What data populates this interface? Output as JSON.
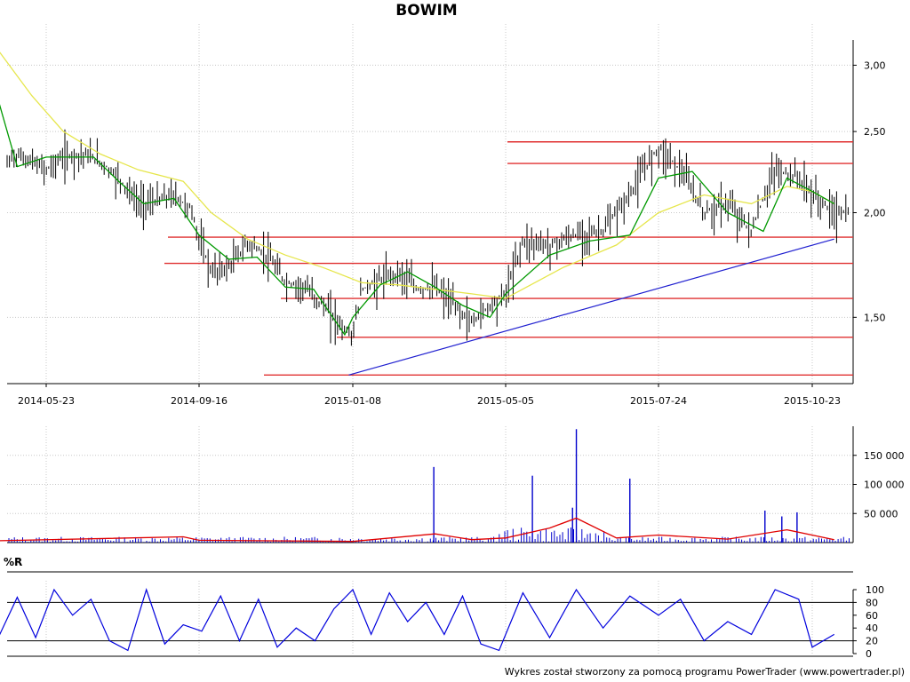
{
  "title": "BOWIM",
  "footer": "Wykres został stworzony za pomocą programu PowerTrader (www.powertrader.pl)",
  "colors": {
    "grid": "#c8c8c8",
    "price": "#000000",
    "ma_fast": "#009900",
    "ma_slow": "#e6e64c",
    "levels": "#e03030",
    "trend": "#2020d0",
    "volume": "#0000cc",
    "volume_ma": "#e00000",
    "wr": "#0000dd"
  },
  "chart_data": [
    {
      "type": "line",
      "name": "price",
      "title": "BOWIM",
      "x_ticks": [
        "2014-05-23",
        "2014-09-16",
        "2015-01-08",
        "2015-05-05",
        "2015-07-24",
        "2015-10-23"
      ],
      "y_ticks": [
        "1,50",
        "2,00",
        "2,50",
        "3,00"
      ],
      "ylim": [
        1.25,
        3.2
      ],
      "scale": "log",
      "grid": true,
      "levels": [
        2.43,
        2.29,
        1.87,
        1.74,
        1.58,
        1.42,
        1.28
      ],
      "trendline": {
        "from": [
          "2015-01-05",
          1.28
        ],
        "to": [
          "2015-11-05",
          1.86
        ]
      },
      "series": [
        {
          "name": "close",
          "x": [
            "2014-04-15",
            "2014-04-28",
            "2014-05-12",
            "2014-05-23",
            "2014-06-05",
            "2014-06-20",
            "2014-07-03",
            "2014-07-17",
            "2014-08-01",
            "2014-08-14",
            "2014-08-28",
            "2014-09-10",
            "2014-09-16",
            "2014-09-25",
            "2014-10-08",
            "2014-10-22",
            "2014-11-05",
            "2014-11-19",
            "2014-12-03",
            "2014-12-17",
            "2015-01-02",
            "2015-01-08",
            "2015-01-15",
            "2015-01-29",
            "2015-02-12",
            "2015-02-26",
            "2015-03-12",
            "2015-03-26",
            "2015-04-09",
            "2015-04-23",
            "2015-05-05",
            "2015-05-14",
            "2015-05-28",
            "2015-06-11",
            "2015-06-25",
            "2015-07-09",
            "2015-07-24",
            "2015-08-06",
            "2015-08-20",
            "2015-09-03",
            "2015-09-17",
            "2015-10-01",
            "2015-10-15",
            "2015-10-23",
            "2015-11-05"
          ],
          "y": [
            2.15,
            2.35,
            2.3,
            2.25,
            2.33,
            2.35,
            2.3,
            2.2,
            2.05,
            2.06,
            2.1,
            2.02,
            1.86,
            1.7,
            1.72,
            1.84,
            1.78,
            1.65,
            1.63,
            1.55,
            1.45,
            1.43,
            1.62,
            1.66,
            1.7,
            1.62,
            1.63,
            1.55,
            1.48,
            1.55,
            1.6,
            1.85,
            1.83,
            1.88,
            1.9,
            2.1,
            2.4,
            2.25,
            2.0,
            2.05,
            1.9,
            2.25,
            2.2,
            2.1,
            2.0
          ]
        },
        {
          "name": "ma_fast",
          "x": [
            "2014-04-15",
            "2014-05-01",
            "2014-05-23",
            "2014-06-10",
            "2014-06-28",
            "2014-07-17",
            "2014-08-05",
            "2014-08-28",
            "2014-09-16",
            "2014-10-08",
            "2014-10-29",
            "2014-11-19",
            "2014-12-10",
            "2015-01-02",
            "2015-01-08",
            "2015-01-29",
            "2015-02-19",
            "2015-03-12",
            "2015-04-02",
            "2015-04-23",
            "2015-05-05",
            "2015-05-28",
            "2015-06-18",
            "2015-07-09",
            "2015-07-24",
            "2015-08-13",
            "2015-09-03",
            "2015-09-24",
            "2015-10-08",
            "2015-10-23",
            "2015-11-05"
          ],
          "y": [
            2.78,
            2.27,
            2.33,
            2.33,
            2.33,
            2.18,
            2.05,
            2.08,
            1.88,
            1.76,
            1.77,
            1.63,
            1.62,
            1.43,
            1.5,
            1.64,
            1.7,
            1.63,
            1.55,
            1.5,
            1.6,
            1.78,
            1.85,
            1.88,
            2.2,
            2.24,
            2.0,
            1.9,
            2.2,
            2.12,
            2.05
          ]
        },
        {
          "name": "ma_slow",
          "x": [
            "2014-04-15",
            "2014-05-12",
            "2014-06-05",
            "2014-07-03",
            "2014-08-01",
            "2014-09-04",
            "2014-09-25",
            "2014-10-22",
            "2014-11-19",
            "2014-12-17",
            "2015-01-15",
            "2015-02-12",
            "2015-03-12",
            "2015-04-09",
            "2015-05-05",
            "2015-06-04",
            "2015-07-02",
            "2015-07-24",
            "2015-08-20",
            "2015-09-17",
            "2015-10-08",
            "2015-10-23",
            "2015-11-05"
          ],
          "y": [
            3.15,
            2.76,
            2.5,
            2.35,
            2.25,
            2.18,
            2.0,
            1.86,
            1.78,
            1.72,
            1.65,
            1.64,
            1.62,
            1.6,
            1.58,
            1.72,
            1.83,
            2.0,
            2.1,
            2.05,
            2.15,
            2.12,
            2.05
          ]
        }
      ]
    },
    {
      "type": "bar",
      "name": "volume",
      "y_ticks": [
        "50 000",
        "100 000",
        "150 000"
      ],
      "ylim": [
        0,
        200000
      ],
      "grid": true,
      "spikes": {
        "x": [
          "2015-03-11",
          "2015-05-19",
          "2015-06-09",
          "2015-06-11",
          "2015-07-09",
          "2015-09-25",
          "2015-10-05",
          "2015-10-14"
        ],
        "y": [
          130000,
          115000,
          60000,
          195000,
          110000,
          55000,
          45000,
          52000
        ]
      },
      "volume_ma": {
        "x": [
          "2014-04-15",
          "2014-09-04",
          "2014-09-16",
          "2015-01-08",
          "2015-03-12",
          "2015-04-09",
          "2015-05-05",
          "2015-05-28",
          "2015-06-11",
          "2015-07-02",
          "2015-07-24",
          "2015-09-03",
          "2015-10-08",
          "2015-11-05"
        ],
        "y": [
          3000,
          10000,
          4000,
          2000,
          15000,
          5000,
          8000,
          25000,
          42000,
          8000,
          13000,
          6000,
          22000,
          5000
        ]
      }
    },
    {
      "type": "line",
      "name": "williams_r",
      "ylabel": "%R",
      "y_ticks": [
        "0",
        "20",
        "40",
        "60",
        "80",
        "100"
      ],
      "ylim": [
        0,
        100
      ],
      "reference_lines": [
        20,
        80
      ],
      "series": [
        {
          "name": "%R",
          "x": [
            "2014-04-15",
            "2014-05-01",
            "2014-05-15",
            "2014-05-29",
            "2014-06-12",
            "2014-06-26",
            "2014-07-10",
            "2014-07-24",
            "2014-08-07",
            "2014-08-21",
            "2014-09-04",
            "2014-09-18",
            "2014-10-02",
            "2014-10-16",
            "2014-10-30",
            "2014-11-13",
            "2014-11-27",
            "2014-12-11",
            "2014-12-25",
            "2015-01-08",
            "2015-01-22",
            "2015-02-05",
            "2015-02-19",
            "2015-03-05",
            "2015-03-19",
            "2015-04-02",
            "2015-04-16",
            "2015-04-30",
            "2015-05-14",
            "2015-05-28",
            "2015-06-11",
            "2015-06-25",
            "2015-07-09",
            "2015-07-24",
            "2015-08-06",
            "2015-08-20",
            "2015-09-03",
            "2015-09-17",
            "2015-10-01",
            "2015-10-15",
            "2015-10-23",
            "2015-11-05"
          ],
          "y": [
            18,
            88,
            25,
            100,
            60,
            85,
            20,
            5,
            100,
            15,
            45,
            35,
            90,
            20,
            85,
            10,
            40,
            20,
            70,
            100,
            30,
            95,
            50,
            80,
            30,
            90,
            15,
            5,
            95,
            25,
            100,
            40,
            90,
            60,
            85,
            20,
            50,
            30,
            100,
            85,
            10,
            30
          ]
        }
      ]
    }
  ]
}
